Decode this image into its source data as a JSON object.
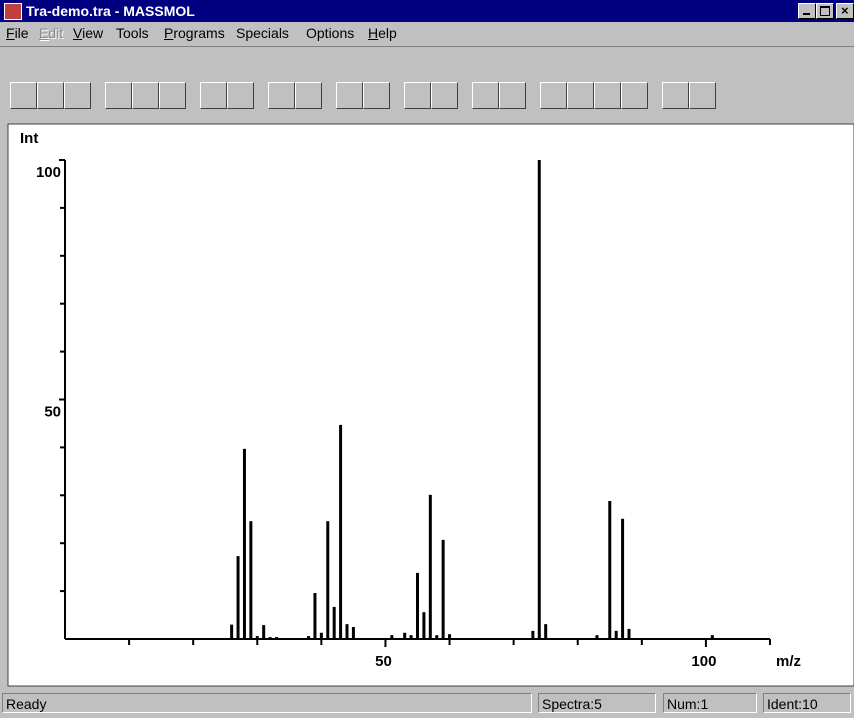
{
  "window": {
    "title": "Tra-demo.tra - MASSMOL",
    "menu": [
      "File",
      "Edit",
      "View",
      "Tools",
      "Programs",
      "Specials",
      "Options",
      "Help"
    ]
  },
  "chart_data": {
    "type": "bar",
    "y_label": "Int",
    "x_label": "m/z",
    "color": "#000000",
    "x": [
      26,
      27,
      28,
      29,
      30,
      31,
      32,
      33,
      38,
      39,
      40,
      41,
      42,
      43,
      44,
      45,
      51,
      53,
      54,
      55,
      56,
      57,
      58,
      59,
      60,
      73,
      74,
      75,
      83,
      85,
      86,
      87,
      88,
      101
    ],
    "values": [
      3,
      17.3,
      39.7,
      24.6,
      0.6,
      2.9,
      0.4,
      0.4,
      0.6,
      9.6,
      1.3,
      24.6,
      6.7,
      44.7,
      3.1,
      2.5,
      0.8,
      1.3,
      0.8,
      13.8,
      5.6,
      30.1,
      0.8,
      20.7,
      1,
      1.7,
      100,
      3.1,
      0.8,
      28.8,
      1.7,
      25.1,
      2.1,
      0.8
    ],
    "xlim": [
      0,
      110
    ],
    "ylim": [
      0,
      100
    ],
    "xticks": [
      50,
      100
    ],
    "xminor_ticks": [
      10,
      20,
      30,
      40,
      60,
      70,
      80,
      90,
      110
    ],
    "yticks": [
      50,
      100
    ],
    "yminor_ticks": [
      10,
      20,
      30,
      40,
      60,
      70,
      80,
      90
    ]
  },
  "status_bar": [
    "Ready",
    "Spectra:5",
    "Num:1",
    "Ident:10"
  ]
}
